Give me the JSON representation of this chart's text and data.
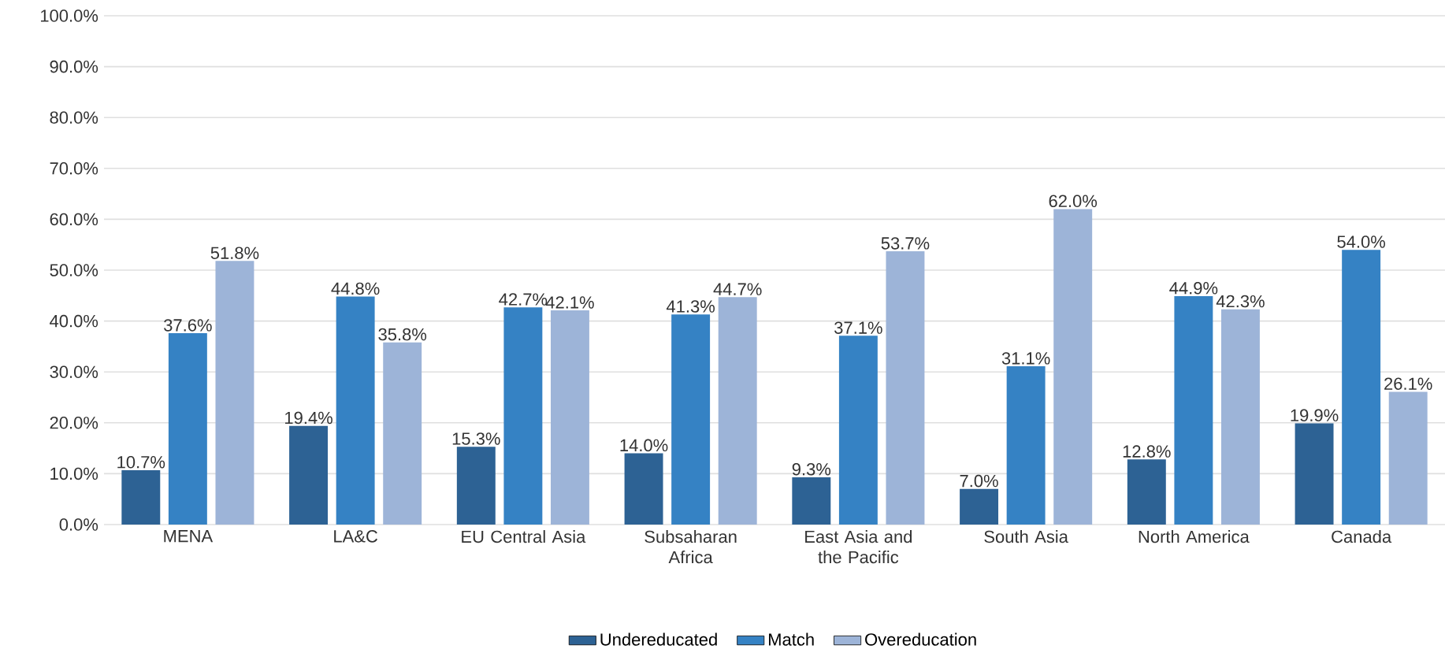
{
  "chart_data": {
    "type": "bar",
    "categories": [
      "MENA",
      "LA&C",
      "EU Central Asia",
      "Subsaharan Africa",
      "East Asia and the Pacific",
      "South Asia",
      "North America",
      "Canada"
    ],
    "series": [
      {
        "name": "Undereducated",
        "color": "#2d6294",
        "values": [
          10.7,
          19.4,
          15.3,
          14.0,
          9.3,
          7.0,
          12.8,
          19.9
        ],
        "value_labels": [
          "10.7%",
          "19.4%",
          "15.3%",
          "14.0%",
          "9.3%",
          "7.0%",
          "12.8%",
          "19.9%"
        ]
      },
      {
        "name": "Match",
        "color": "#3582c4",
        "values": [
          37.6,
          44.8,
          42.7,
          41.3,
          37.1,
          31.1,
          44.9,
          54.0
        ],
        "value_labels": [
          "37.6%",
          "44.8%",
          "42.7%",
          "41.3%",
          "37.1%",
          "31.1%",
          "44.9%",
          "54.0%"
        ]
      },
      {
        "name": "Overeducation",
        "color": "#9db4d8",
        "values": [
          51.8,
          35.8,
          42.1,
          44.7,
          53.7,
          62.0,
          42.3,
          26.1
        ],
        "value_labels": [
          "51.8%",
          "35.8%",
          "42.1%",
          "44.7%",
          "53.7%",
          "62.0%",
          "42.3%",
          "26.1%"
        ]
      }
    ],
    "ylim": [
      0,
      100
    ],
    "yticks": [
      {
        "value": 0,
        "label": "0.0%"
      },
      {
        "value": 10,
        "label": "10.0%"
      },
      {
        "value": 20,
        "label": "20.0%"
      },
      {
        "value": 30,
        "label": "30.0%"
      },
      {
        "value": 40,
        "label": "40.0%"
      },
      {
        "value": 50,
        "label": "50.0%"
      },
      {
        "value": 60,
        "label": "60.0%"
      },
      {
        "value": 70,
        "label": "70.0%"
      },
      {
        "value": 80,
        "label": "80.0%"
      },
      {
        "value": 90,
        "label": "90.0%"
      },
      {
        "value": 100,
        "label": "100.0%"
      }
    ],
    "grid": "y",
    "legend": "bottom"
  }
}
